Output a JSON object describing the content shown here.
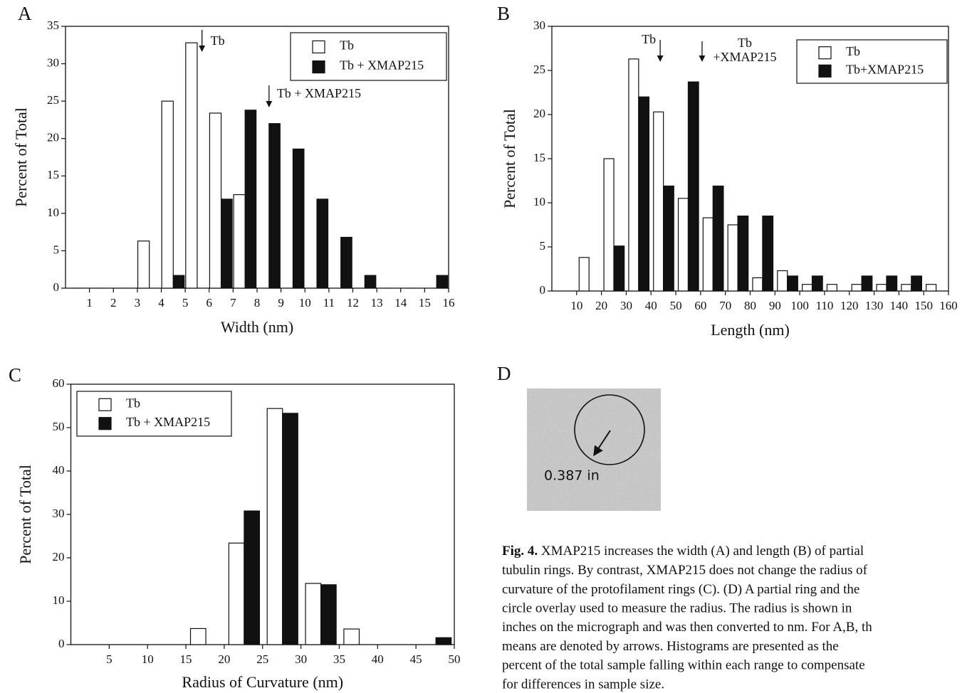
{
  "panels": [
    "A",
    "B",
    "C",
    "D"
  ],
  "micrograph_label": "0.387 in",
  "caption": {
    "label": "Fig. 4.",
    "lines": [
      " XMAP215 increases the width (A) and length (B) of partial",
      "tubulin rings. By contrast, XMAP215 does not change the radius of",
      "curvature of the protofilament rings (C). (D) A partial ring and the",
      "circle overlay used to measure the radius. The radius is shown in",
      "inches on the micrograph and was then converted to nm. For A,B, th",
      "means are denoted by arrows. Histograms are presented as the",
      "percent of the total sample falling within each range to compensate",
      "for differences in sample size."
    ]
  },
  "chart_data": [
    {
      "type": "histogram",
      "x_label": "Width (nm)",
      "y_label": "Percent of Total",
      "bins": [
        1,
        2,
        3,
        4,
        5,
        6,
        7,
        8,
        9,
        10,
        11,
        12,
        13,
        14,
        15,
        16
      ],
      "series": [
        {
          "name": "Tb",
          "color": "#ffffff",
          "values": [
            null,
            null,
            6.3,
            25,
            32.8,
            23.4,
            12.5,
            null,
            null,
            null,
            null,
            null,
            null,
            null,
            null
          ]
        },
        {
          "name": "Tb + XMAP215",
          "color": "#111111",
          "values": [
            null,
            null,
            null,
            1.7,
            null,
            11.9,
            23.8,
            22,
            18.6,
            11.9,
            6.8,
            1.7,
            null,
            null,
            1.7
          ]
        }
      ],
      "xlim": [
        0,
        16
      ],
      "xticks": [
        1,
        2,
        3,
        4,
        5,
        6,
        7,
        8,
        9,
        10,
        11,
        12,
        13,
        14,
        15,
        16
      ],
      "ylim": [
        0,
        35
      ],
      "yticks": [
        0,
        5,
        10,
        15,
        20,
        25,
        30,
        35
      ],
      "legend": "upper right",
      "annotations": [
        {
          "text": [
            "Tb"
          ],
          "x": 5.7
        },
        {
          "text": [
            "Tb + XMAP215"
          ],
          "x": 8.5
        }
      ]
    },
    {
      "type": "histogram",
      "x_label": "Length (nm)",
      "y_label": "Percent of Total",
      "bins": [
        10,
        20,
        30,
        40,
        50,
        60,
        70,
        80,
        90,
        100,
        110,
        120,
        130,
        140,
        150,
        160
      ],
      "series": [
        {
          "name": "Tb",
          "color": "#ffffff",
          "values": [
            3.8,
            15,
            26.3,
            20.3,
            10.5,
            8.3,
            7.5,
            1.5,
            2.3,
            0.75,
            0.75,
            0.75,
            0.75,
            0.75,
            0.75
          ]
        },
        {
          "name": "Tb+XMAP215",
          "color": "#111111",
          "values": [
            null,
            5.1,
            22,
            11.9,
            23.7,
            11.9,
            8.5,
            8.5,
            1.7,
            1.7,
            null,
            1.7,
            1.7,
            1.7,
            null
          ]
        }
      ],
      "xlim": [
        0,
        160
      ],
      "xticks": [
        10,
        20,
        30,
        40,
        50,
        60,
        70,
        80,
        90,
        100,
        110,
        120,
        130,
        140,
        150,
        160
      ],
      "ylim": [
        0,
        30
      ],
      "yticks": [
        0,
        5,
        10,
        15,
        20,
        25,
        30
      ],
      "legend": "upper right",
      "annotations": [
        {
          "text": [
            "Tb"
          ],
          "x": 43.7
        },
        {
          "text": [
            "Tb",
            "+XMAP215"
          ],
          "x": 60.6
        }
      ]
    },
    {
      "type": "histogram",
      "x_label": "Radius of Curvature (nm)",
      "y_label": "Percent of Total",
      "bins": [
        15,
        20,
        25,
        30,
        35,
        40,
        45,
        50
      ],
      "series": [
        {
          "name": "Tb",
          "color": "#ffffff",
          "values": [
            3.7,
            23.4,
            54.4,
            14.1,
            3.6,
            null,
            null
          ]
        },
        {
          "name": "Tb + XMAP215",
          "color": "#111111",
          "values": [
            null,
            30.8,
            53.3,
            13.8,
            null,
            null,
            1.6
          ]
        }
      ],
      "xlim": [
        0,
        50
      ],
      "xticks": [
        5,
        10,
        15,
        20,
        25,
        30,
        35,
        40,
        45,
        50
      ],
      "ylim": [
        0,
        60
      ],
      "yticks": [
        0,
        10,
        20,
        30,
        40,
        50,
        60
      ],
      "legend": "upper left"
    }
  ]
}
